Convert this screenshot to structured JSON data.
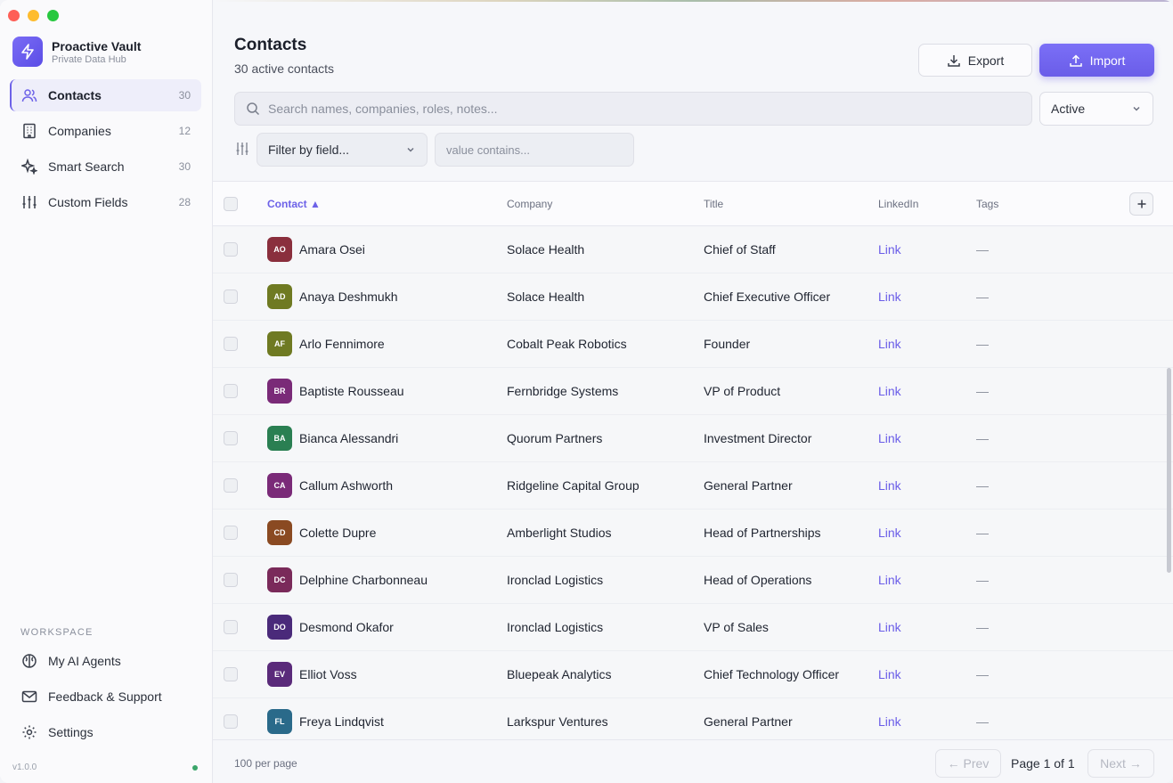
{
  "sidebar": {
    "brand_name": "Proactive Vault",
    "brand_sub": "Private Data Hub",
    "nav": [
      {
        "label": "Contacts",
        "count": "30",
        "icon": "users-icon"
      },
      {
        "label": "Companies",
        "count": "12",
        "icon": "building-icon"
      },
      {
        "label": "Smart Search",
        "count": "30",
        "icon": "sparkle-icon"
      },
      {
        "label": "Custom Fields",
        "count": "28",
        "icon": "sliders-icon"
      }
    ],
    "workspace_label": "WORKSPACE",
    "workspace": [
      {
        "label": "My AI Agents",
        "icon": "brain-icon"
      },
      {
        "label": "Feedback & Support",
        "icon": "mail-icon"
      },
      {
        "label": "Settings",
        "icon": "gear-icon"
      }
    ],
    "version": "v1.0.0"
  },
  "header": {
    "title": "Contacts",
    "subtitle": "30 active contacts",
    "export_label": "Export",
    "import_label": "Import"
  },
  "search": {
    "placeholder": "Search names, companies, roles, notes...",
    "status": "Active"
  },
  "filter": {
    "field_label": "Filter by field...",
    "value_placeholder": "value contains..."
  },
  "table": {
    "columns": [
      "Contact ▲",
      "Company",
      "Title",
      "LinkedIn",
      "Tags"
    ],
    "rows": [
      {
        "initials": "AO",
        "name": "Amara Osei",
        "company": "Solace Health",
        "title": "Chief of Staff",
        "link": "Link",
        "tags": "—",
        "color": "#8a2f3d"
      },
      {
        "initials": "AD",
        "name": "Anaya Deshmukh",
        "company": "Solace Health",
        "title": "Chief Executive Officer",
        "link": "Link",
        "tags": "—",
        "color": "#6f7a22"
      },
      {
        "initials": "AF",
        "name": "Arlo Fennimore",
        "company": "Cobalt Peak Robotics",
        "title": "Founder",
        "link": "Link",
        "tags": "—",
        "color": "#6f7a22"
      },
      {
        "initials": "BR",
        "name": "Baptiste Rousseau",
        "company": "Fernbridge Systems",
        "title": "VP of Product",
        "link": "Link",
        "tags": "—",
        "color": "#7a2a78"
      },
      {
        "initials": "BA",
        "name": "Bianca Alessandri",
        "company": "Quorum Partners",
        "title": "Investment Director",
        "link": "Link",
        "tags": "—",
        "color": "#2a7f52"
      },
      {
        "initials": "CA",
        "name": "Callum Ashworth",
        "company": "Ridgeline Capital Group",
        "title": "General Partner",
        "link": "Link",
        "tags": "—",
        "color": "#7a2a78"
      },
      {
        "initials": "CD",
        "name": "Colette Dupre",
        "company": "Amberlight Studios",
        "title": "Head of Partnerships",
        "link": "Link",
        "tags": "—",
        "color": "#8a4a22"
      },
      {
        "initials": "DC",
        "name": "Delphine Charbonneau",
        "company": "Ironclad Logistics",
        "title": "Head of Operations",
        "link": "Link",
        "tags": "—",
        "color": "#7a2a5a"
      },
      {
        "initials": "DO",
        "name": "Desmond Okafor",
        "company": "Ironclad Logistics",
        "title": "VP of Sales",
        "link": "Link",
        "tags": "—",
        "color": "#4a2a7a"
      },
      {
        "initials": "EV",
        "name": "Elliot Voss",
        "company": "Bluepeak Analytics",
        "title": "Chief Technology Officer",
        "link": "Link",
        "tags": "—",
        "color": "#5a2a7a"
      },
      {
        "initials": "FL",
        "name": "Freya Lindqvist",
        "company": "Larkspur Ventures",
        "title": "General Partner",
        "link": "Link",
        "tags": "—",
        "color": "#2a6a8a"
      }
    ]
  },
  "footer": {
    "per_page": "100 per page",
    "prev": "← Prev",
    "page": "Page 1 of 1",
    "next": "Next →"
  }
}
